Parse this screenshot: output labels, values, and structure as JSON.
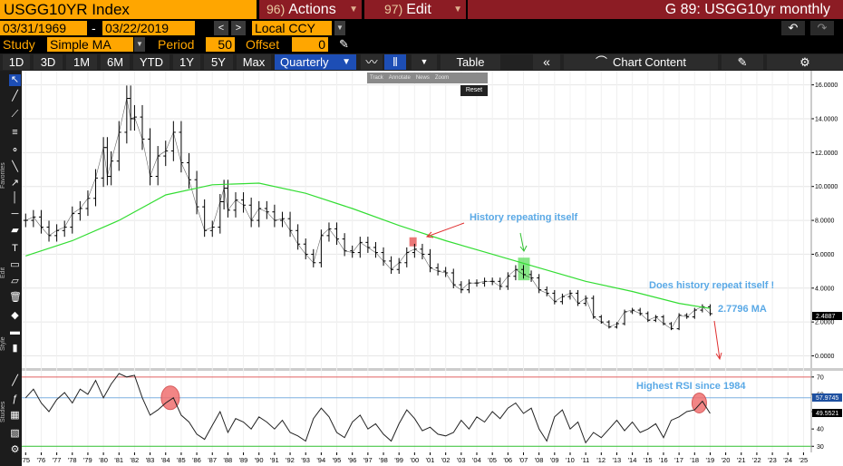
{
  "header": {
    "ticker": "USGG10YR Index",
    "actions_num": "96)",
    "actions_label": "Actions",
    "edit_num": "97)",
    "edit_label": "Edit",
    "page_title": "G 89: USGG10yr monthly"
  },
  "range_bar": {
    "start_date": "03/31/1969",
    "separator": "-",
    "end_date": "03/22/2019",
    "currency": "Local CCY"
  },
  "study_bar": {
    "study_label": "Study",
    "study_value": "Simple MA",
    "period_label": "Period",
    "period_value": "50",
    "offset_label": "Offset",
    "offset_value": "0"
  },
  "period_buttons": [
    "1D",
    "3D",
    "1M",
    "6M",
    "YTD",
    "1Y",
    "5Y",
    "Max"
  ],
  "frequency": "Quarterly",
  "toolbar": {
    "table_label": "Table",
    "chart_content_label": "Chart Content"
  },
  "mini_toolbar": {
    "items": [
      "Track",
      "Annotate",
      "News",
      "Zoom"
    ],
    "reset_label": "Reset"
  },
  "rail_labels": [
    "Favorites",
    "Edit",
    "Style",
    "Studies"
  ],
  "colors": {
    "price": "#000000",
    "ma": "#33dd33",
    "annotation": "#5aa9e6",
    "arrow": "#e03030",
    "rsi_70": "#e06060",
    "rsi_mid": "#7fb0e0",
    "rsi_30": "#30c030",
    "accent": "#ffa600",
    "menu": "#8c1c24"
  },
  "chart_data": [
    {
      "type": "line",
      "name": "USGG10YR Index price (quarterly bars) with 50-period SMA",
      "y_axis": {
        "ticks": [
          "0.0000",
          "2.0000",
          "4.0000",
          "6.0000",
          "8.0000",
          "10.0000",
          "12.0000",
          "14.0000",
          "16.0000"
        ],
        "range": [
          -0.4,
          16.3
        ]
      },
      "x_axis": {
        "labels": [
          "'75",
          "'76",
          "'77",
          "'78",
          "'79",
          "'80",
          "'81",
          "'82",
          "'83",
          "'84",
          "'85",
          "'86",
          "'87",
          "'88",
          "'89",
          "'90",
          "'91",
          "'92",
          "'93",
          "'94",
          "'95",
          "'96",
          "'97",
          "'98",
          "'99",
          "'00",
          "'01",
          "'02",
          "'03",
          "'04",
          "'05",
          "'06",
          "'07",
          "'08",
          "'09",
          "'10",
          "'11",
          "'12",
          "'13",
          "'14",
          "'15",
          "'16",
          "'17",
          "'18",
          "'19",
          "'20",
          "'21",
          "'22",
          "'23",
          "'24",
          "'25"
        ],
        "range": [
          1974.75,
          2025.5
        ]
      },
      "series": [
        {
          "name": "USGG10YR",
          "x": [
            1975.0,
            1975.5,
            1976.0,
            1976.5,
            1977.0,
            1977.5,
            1978.0,
            1978.5,
            1979.0,
            1979.5,
            1980.0,
            1980.25,
            1980.5,
            1981.0,
            1981.5,
            1981.75,
            1982.0,
            1982.5,
            1983.0,
            1983.5,
            1984.0,
            1984.5,
            1985.0,
            1985.5,
            1986.0,
            1986.5,
            1987.0,
            1987.5,
            1987.75,
            1988.0,
            1988.5,
            1989.0,
            1989.5,
            1990.0,
            1990.5,
            1991.0,
            1991.5,
            1992.0,
            1992.5,
            1993.0,
            1993.5,
            1994.0,
            1994.5,
            1995.0,
            1995.5,
            1996.0,
            1996.5,
            1997.0,
            1997.5,
            1998.0,
            1998.5,
            1999.0,
            1999.5,
            2000.0,
            2000.5,
            2001.0,
            2001.5,
            2002.0,
            2002.5,
            2003.0,
            2003.5,
            2004.0,
            2004.5,
            2005.0,
            2005.5,
            2006.0,
            2006.5,
            2007.0,
            2007.5,
            2008.0,
            2008.5,
            2009.0,
            2009.5,
            2010.0,
            2010.5,
            2011.0,
            2011.5,
            2012.0,
            2012.5,
            2013.0,
            2013.5,
            2014.0,
            2014.5,
            2015.0,
            2015.5,
            2016.0,
            2016.5,
            2017.0,
            2017.5,
            2018.0,
            2018.5,
            2019.0
          ],
          "values": [
            8.0,
            8.2,
            7.6,
            7.1,
            7.4,
            7.6,
            8.4,
            8.7,
            9.3,
            10.5,
            12.3,
            10.6,
            11.5,
            13.2,
            15.2,
            14.0,
            14.1,
            12.8,
            10.6,
            11.8,
            12.1,
            13.2,
            11.4,
            10.4,
            8.8,
            7.4,
            7.6,
            9.1,
            9.9,
            8.6,
            9.2,
            8.9,
            8.0,
            8.7,
            8.5,
            8.0,
            8.1,
            7.4,
            6.6,
            6.0,
            5.5,
            7.1,
            7.5,
            6.9,
            6.2,
            6.1,
            6.7,
            6.4,
            6.1,
            5.6,
            5.1,
            5.5,
            6.1,
            6.3,
            6.0,
            5.2,
            5.0,
            4.9,
            4.2,
            3.9,
            4.3,
            4.3,
            4.4,
            4.4,
            4.1,
            4.7,
            5.1,
            4.8,
            4.6,
            3.9,
            3.7,
            3.2,
            3.5,
            3.7,
            3.1,
            3.4,
            2.3,
            2.0,
            1.7,
            1.9,
            2.6,
            2.7,
            2.5,
            2.1,
            2.3,
            1.9,
            1.6,
            2.4,
            2.3,
            2.7,
            2.9,
            2.49
          ]
        },
        {
          "name": "SMA 50",
          "x": [
            1975.0,
            1978.0,
            1981.0,
            1984.0,
            1987.0,
            1990.0,
            1993.0,
            1996.0,
            1999.0,
            2002.0,
            2005.0,
            2008.0,
            2011.0,
            2014.0,
            2017.0,
            2019.0
          ],
          "values": [
            5.9,
            6.8,
            8.0,
            9.5,
            10.1,
            10.2,
            9.6,
            8.7,
            7.7,
            6.8,
            6.0,
            5.2,
            4.4,
            3.8,
            3.1,
            2.8
          ]
        }
      ],
      "last_value": "2.4887",
      "annotations": [
        "History repeating itself",
        "Does history repeat itself !",
        "2.7796  MA"
      ]
    },
    {
      "type": "line",
      "name": "RSI",
      "y_axis": {
        "ticks": [
          "30",
          "40",
          "50",
          "60",
          "70"
        ],
        "range": [
          27,
          72
        ]
      },
      "series": [
        {
          "name": "RSI",
          "x": [
            1975.0,
            1975.5,
            1976.0,
            1976.5,
            1977.0,
            1977.5,
            1978.0,
            1978.5,
            1979.0,
            1979.5,
            1980.0,
            1980.5,
            1981.0,
            1981.5,
            1982.0,
            1982.5,
            1983.0,
            1983.5,
            1984.0,
            1984.5,
            1985.0,
            1985.5,
            1986.0,
            1986.5,
            1987.0,
            1987.5,
            1988.0,
            1988.5,
            1989.0,
            1989.5,
            1990.0,
            1990.5,
            1991.0,
            1991.5,
            1992.0,
            1992.5,
            1993.0,
            1993.5,
            1994.0,
            1994.5,
            1995.0,
            1995.5,
            1996.0,
            1996.5,
            1997.0,
            1997.5,
            1998.0,
            1998.5,
            1999.0,
            1999.5,
            2000.0,
            2000.5,
            2001.0,
            2001.5,
            2002.0,
            2002.5,
            2003.0,
            2003.5,
            2004.0,
            2004.5,
            2005.0,
            2005.5,
            2006.0,
            2006.5,
            2007.0,
            2007.5,
            2008.0,
            2008.5,
            2009.0,
            2009.5,
            2010.0,
            2010.5,
            2011.0,
            2011.5,
            2012.0,
            2012.5,
            2013.0,
            2013.5,
            2014.0,
            2014.5,
            2015.0,
            2015.5,
            2016.0,
            2016.5,
            2017.0,
            2017.5,
            2018.0,
            2018.5,
            2019.0
          ],
          "values": [
            58,
            63,
            55,
            50,
            57,
            61,
            55,
            63,
            60,
            68,
            58,
            66,
            72,
            70,
            71,
            58,
            48,
            51,
            55,
            58,
            48,
            44,
            37,
            34,
            42,
            50,
            38,
            46,
            44,
            40,
            47,
            44,
            40,
            45,
            38,
            36,
            33,
            46,
            52,
            47,
            38,
            35,
            44,
            48,
            40,
            43,
            37,
            33,
            43,
            51,
            46,
            39,
            41,
            37,
            36,
            38,
            45,
            40,
            47,
            44,
            50,
            46,
            52,
            55,
            49,
            52,
            40,
            33,
            47,
            51,
            40,
            44,
            32,
            38,
            35,
            40,
            45,
            39,
            44,
            38,
            40,
            43,
            35,
            45,
            47,
            50,
            51,
            56,
            49
          ]
        }
      ],
      "levels": [
        "70",
        "57.9745",
        "49.5521",
        "30"
      ],
      "annotations": [
        "Highest RSI since 1984"
      ]
    }
  ]
}
